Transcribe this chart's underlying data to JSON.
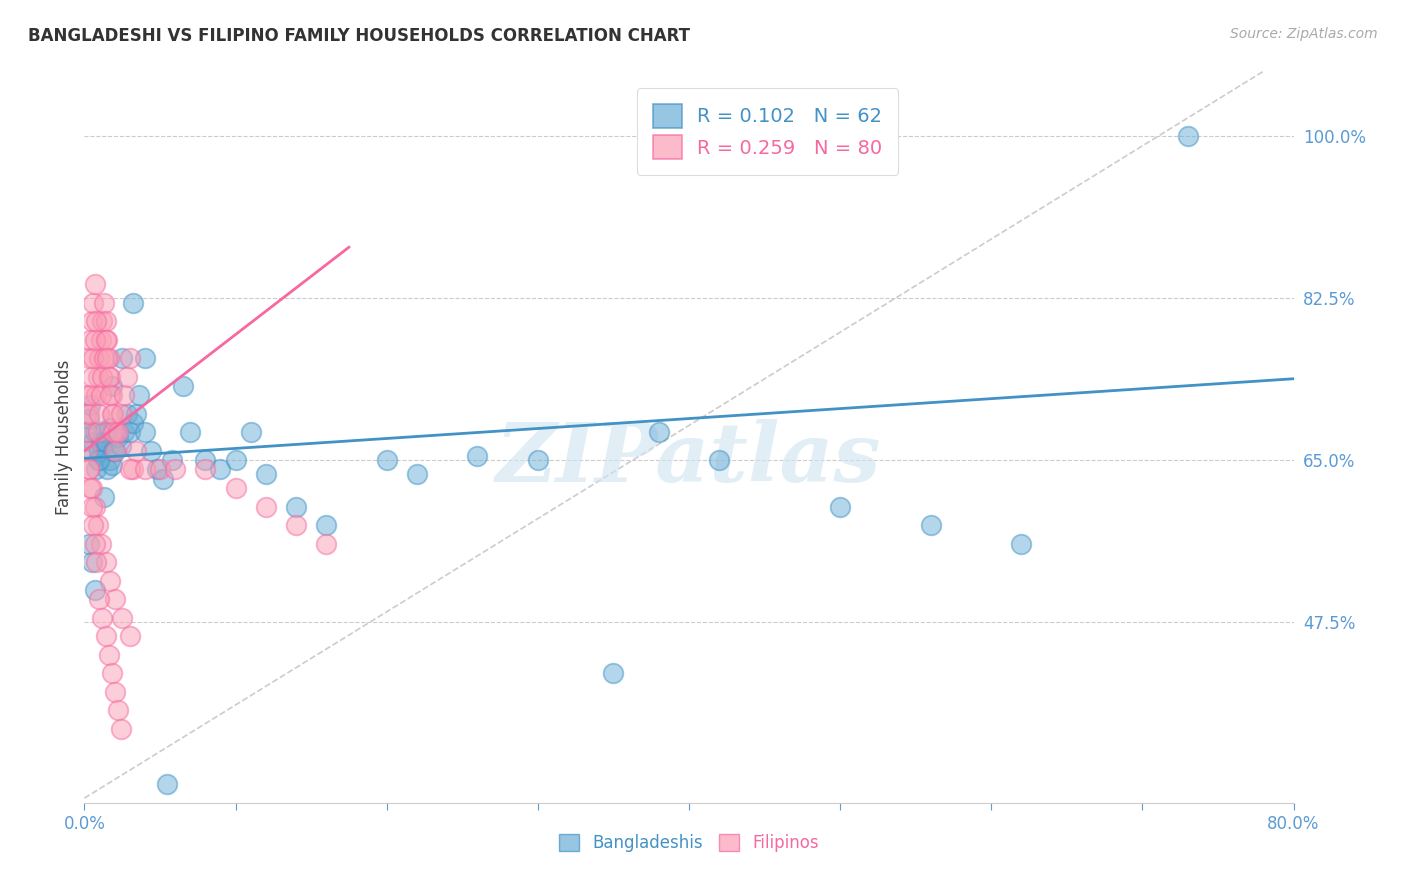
{
  "title": "BANGLADESHI VS FILIPINO FAMILY HOUSEHOLDS CORRELATION CHART",
  "source": "Source: ZipAtlas.com",
  "ylabel": "Family Households",
  "ytick_labels": [
    "100.0%",
    "82.5%",
    "65.0%",
    "47.5%"
  ],
  "ytick_values": [
    1.0,
    0.825,
    0.65,
    0.475
  ],
  "legend_label1": "R = 0.102   N = 62",
  "legend_label2": "R = 0.259   N = 80",
  "color_blue": "#6baed6",
  "color_pink": "#fa9fb5",
  "color_blue_line": "#4292c6",
  "color_pink_line": "#f768a1",
  "color_diag": "#cccccc",
  "watermark": "ZIPatlas",
  "blue_scatter_x": [
    0.002,
    0.003,
    0.004,
    0.005,
    0.006,
    0.007,
    0.008,
    0.009,
    0.01,
    0.011,
    0.012,
    0.013,
    0.014,
    0.015,
    0.016,
    0.017,
    0.018,
    0.019,
    0.02,
    0.022,
    0.024,
    0.026,
    0.028,
    0.03,
    0.032,
    0.034,
    0.036,
    0.04,
    0.044,
    0.048,
    0.052,
    0.058,
    0.065,
    0.07,
    0.08,
    0.09,
    0.1,
    0.11,
    0.12,
    0.14,
    0.16,
    0.2,
    0.22,
    0.26,
    0.3,
    0.35,
    0.38,
    0.42,
    0.5,
    0.56,
    0.62,
    0.73,
    0.003,
    0.005,
    0.007,
    0.01,
    0.013,
    0.018,
    0.025,
    0.032,
    0.04,
    0.055
  ],
  "blue_scatter_y": [
    0.68,
    0.695,
    0.71,
    0.66,
    0.67,
    0.68,
    0.64,
    0.65,
    0.66,
    0.67,
    0.665,
    0.68,
    0.67,
    0.64,
    0.685,
    0.65,
    0.645,
    0.66,
    0.66,
    0.675,
    0.665,
    0.68,
    0.7,
    0.68,
    0.69,
    0.7,
    0.72,
    0.68,
    0.66,
    0.64,
    0.63,
    0.65,
    0.73,
    0.68,
    0.65,
    0.64,
    0.65,
    0.68,
    0.635,
    0.6,
    0.58,
    0.65,
    0.635,
    0.655,
    0.65,
    0.42,
    0.68,
    0.65,
    0.6,
    0.58,
    0.56,
    1.0,
    0.56,
    0.54,
    0.51,
    0.65,
    0.61,
    0.73,
    0.76,
    0.82,
    0.76,
    0.3
  ],
  "pink_scatter_x": [
    0.001,
    0.002,
    0.003,
    0.004,
    0.005,
    0.006,
    0.007,
    0.008,
    0.009,
    0.01,
    0.011,
    0.012,
    0.013,
    0.014,
    0.015,
    0.016,
    0.017,
    0.018,
    0.019,
    0.02,
    0.002,
    0.003,
    0.004,
    0.005,
    0.006,
    0.007,
    0.008,
    0.009,
    0.01,
    0.011,
    0.012,
    0.013,
    0.014,
    0.015,
    0.016,
    0.017,
    0.018,
    0.019,
    0.02,
    0.022,
    0.024,
    0.026,
    0.028,
    0.03,
    0.032,
    0.034,
    0.003,
    0.005,
    0.007,
    0.009,
    0.011,
    0.014,
    0.017,
    0.02,
    0.025,
    0.03,
    0.002,
    0.003,
    0.004,
    0.005,
    0.006,
    0.007,
    0.008,
    0.01,
    0.012,
    0.014,
    0.016,
    0.018,
    0.02,
    0.022,
    0.024,
    0.03,
    0.04,
    0.05,
    0.06,
    0.08,
    0.1,
    0.12,
    0.14,
    0.16
  ],
  "pink_scatter_y": [
    0.7,
    0.72,
    0.76,
    0.78,
    0.8,
    0.82,
    0.84,
    0.72,
    0.74,
    0.76,
    0.78,
    0.8,
    0.82,
    0.8,
    0.78,
    0.76,
    0.74,
    0.72,
    0.7,
    0.68,
    0.68,
    0.7,
    0.72,
    0.74,
    0.76,
    0.78,
    0.8,
    0.68,
    0.7,
    0.72,
    0.74,
    0.76,
    0.78,
    0.76,
    0.74,
    0.72,
    0.7,
    0.68,
    0.66,
    0.68,
    0.7,
    0.72,
    0.74,
    0.76,
    0.64,
    0.66,
    0.64,
    0.62,
    0.6,
    0.58,
    0.56,
    0.54,
    0.52,
    0.5,
    0.48,
    0.46,
    0.66,
    0.64,
    0.62,
    0.6,
    0.58,
    0.56,
    0.54,
    0.5,
    0.48,
    0.46,
    0.44,
    0.42,
    0.4,
    0.38,
    0.36,
    0.64,
    0.64,
    0.64,
    0.64,
    0.64,
    0.62,
    0.6,
    0.58,
    0.56
  ],
  "xlim": [
    0.0,
    0.8
  ],
  "ylim": [
    0.28,
    1.07
  ],
  "blue_line_x": [
    0.0,
    0.8
  ],
  "blue_line_y": [
    0.652,
    0.738
  ],
  "pink_line_x": [
    0.0,
    0.175
  ],
  "pink_line_y": [
    0.66,
    0.88
  ],
  "diag_line_x": [
    0.0,
    0.78
  ],
  "diag_line_y": [
    0.285,
    1.07
  ]
}
